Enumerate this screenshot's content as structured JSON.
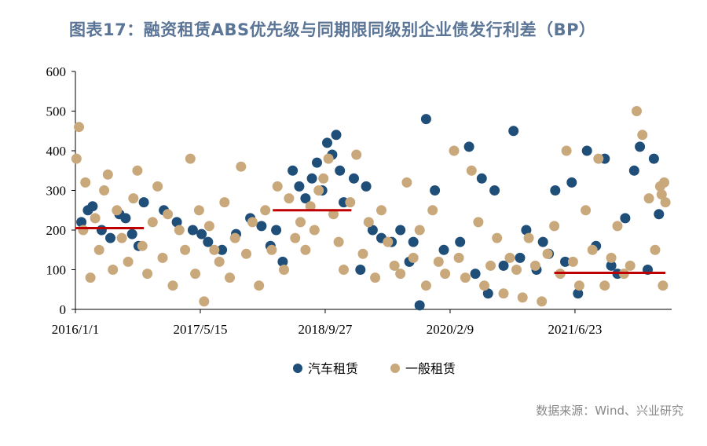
{
  "header": {
    "title": "图表17：融资租赁ABS优先级与同期限同级别企业债发行利差（BP）"
  },
  "footer": {
    "source": "数据来源：Wind、兴业研究"
  },
  "chart_data": {
    "type": "scatter",
    "title": "图表17：融资租赁ABS优先级与同期限同级别企业债发行利差（BP）",
    "ylim": [
      0,
      600
    ],
    "yticks": [
      0,
      100,
      200,
      300,
      400,
      500,
      600
    ],
    "xlim": [
      "2016-01-01",
      "2022-07-15"
    ],
    "xtick_labels": [
      "2016/1/1",
      "2017/5/15",
      "2018/9/27",
      "2020/2/9",
      "2021/6/23"
    ],
    "xtick_dates": [
      "2016-01-01",
      "2017-05-15",
      "2018-09-27",
      "2020-02-09",
      "2021-06-23"
    ],
    "legend_position": "bottom",
    "grid": false,
    "series": [
      {
        "name": "汽车租赁",
        "color": "#1f4e79",
        "x": [
          "2016-01-25",
          "2016-02-20",
          "2016-03-10",
          "2016-04-15",
          "2016-05-20",
          "2016-06-25",
          "2016-07-20",
          "2016-08-15",
          "2016-09-10",
          "2016-10-01",
          "2016-12-20",
          "2017-02-10",
          "2017-04-15",
          "2017-05-20",
          "2017-06-15",
          "2017-08-10",
          "2017-10-05",
          "2017-12-01",
          "2018-01-15",
          "2018-02-20",
          "2018-03-15",
          "2018-04-10",
          "2018-05-20",
          "2018-06-15",
          "2018-07-10",
          "2018-08-05",
          "2018-08-25",
          "2018-09-15",
          "2018-10-05",
          "2018-10-25",
          "2018-11-10",
          "2018-11-25",
          "2018-12-10",
          "2019-01-20",
          "2019-02-15",
          "2019-03-10",
          "2019-04-05",
          "2019-05-10",
          "2019-06-20",
          "2019-07-25",
          "2019-08-30",
          "2019-09-15",
          "2019-10-10",
          "2019-11-05",
          "2019-12-10",
          "2020-01-15",
          "2020-03-20",
          "2020-04-25",
          "2020-05-20",
          "2020-06-15",
          "2020-07-10",
          "2020-08-05",
          "2020-09-10",
          "2020-10-20",
          "2020-11-15",
          "2020-12-10",
          "2021-01-20",
          "2021-02-15",
          "2021-03-10",
          "2021-04-05",
          "2021-05-15",
          "2021-06-10",
          "2021-07-05",
          "2021-08-10",
          "2021-09-15",
          "2021-10-20",
          "2021-11-15",
          "2021-12-10",
          "2022-01-10",
          "2022-02-15",
          "2022-03-10",
          "2022-04-10",
          "2022-05-05",
          "2022-05-25"
        ],
        "y": [
          220,
          250,
          260,
          200,
          180,
          240,
          230,
          190,
          160,
          270,
          250,
          220,
          200,
          190,
          170,
          150,
          190,
          230,
          210,
          160,
          200,
          120,
          350,
          310,
          280,
          330,
          370,
          300,
          420,
          390,
          440,
          350,
          270,
          330,
          100,
          310,
          200,
          180,
          170,
          200,
          120,
          170,
          10,
          480,
          300,
          150,
          170,
          410,
          90,
          330,
          40,
          300,
          110,
          450,
          130,
          200,
          100,
          170,
          140,
          300,
          120,
          320,
          40,
          400,
          160,
          380,
          110,
          90,
          230,
          350,
          410,
          100,
          380,
          240
        ]
      },
      {
        "name": "一般租赁",
        "color": "#c9a97b",
        "x": [
          "2016-01-05",
          "2016-01-15",
          "2016-02-01",
          "2016-02-10",
          "2016-03-01",
          "2016-03-20",
          "2016-04-05",
          "2016-04-25",
          "2016-05-10",
          "2016-05-30",
          "2016-06-15",
          "2016-07-05",
          "2016-07-30",
          "2016-08-20",
          "2016-09-05",
          "2016-09-25",
          "2016-10-15",
          "2016-11-05",
          "2016-11-25",
          "2016-12-15",
          "2017-01-05",
          "2017-01-25",
          "2017-02-20",
          "2017-03-15",
          "2017-04-05",
          "2017-04-25",
          "2017-05-10",
          "2017-05-30",
          "2017-06-20",
          "2017-07-10",
          "2017-07-30",
          "2017-08-20",
          "2017-09-10",
          "2017-10-01",
          "2017-10-25",
          "2017-11-15",
          "2017-12-10",
          "2018-01-05",
          "2018-01-30",
          "2018-02-25",
          "2018-03-20",
          "2018-04-15",
          "2018-05-05",
          "2018-05-30",
          "2018-06-20",
          "2018-07-10",
          "2018-07-30",
          "2018-08-15",
          "2018-09-01",
          "2018-09-20",
          "2018-10-10",
          "2018-10-30",
          "2018-11-20",
          "2018-12-10",
          "2019-01-05",
          "2019-01-30",
          "2019-02-25",
          "2019-03-20",
          "2019-04-15",
          "2019-05-10",
          "2019-06-05",
          "2019-07-01",
          "2019-07-25",
          "2019-08-20",
          "2019-09-15",
          "2019-10-10",
          "2019-11-05",
          "2019-12-01",
          "2019-12-25",
          "2020-01-20",
          "2020-02-25",
          "2020-03-15",
          "2020-04-10",
          "2020-05-05",
          "2020-06-01",
          "2020-06-25",
          "2020-07-20",
          "2020-08-15",
          "2020-09-10",
          "2020-10-05",
          "2020-11-01",
          "2020-11-25",
          "2020-12-20",
          "2021-01-15",
          "2021-02-10",
          "2021-03-05",
          "2021-04-01",
          "2021-04-25",
          "2021-05-20",
          "2021-06-15",
          "2021-07-10",
          "2021-08-05",
          "2021-09-01",
          "2021-09-25",
          "2021-10-20",
          "2021-11-15",
          "2021-12-10",
          "2022-01-05",
          "2022-01-30",
          "2022-02-25",
          "2022-03-20",
          "2022-04-15",
          "2022-05-10",
          "2022-05-30",
          "2022-06-05",
          "2022-06-10",
          "2022-06-15",
          "2022-06-20"
        ],
        "y": [
          380,
          460,
          200,
          320,
          80,
          230,
          150,
          300,
          340,
          100,
          250,
          180,
          120,
          280,
          350,
          160,
          90,
          220,
          310,
          130,
          240,
          60,
          200,
          150,
          380,
          90,
          250,
          20,
          210,
          150,
          120,
          270,
          80,
          180,
          360,
          140,
          220,
          60,
          250,
          150,
          310,
          100,
          280,
          180,
          220,
          150,
          260,
          200,
          300,
          330,
          380,
          240,
          170,
          100,
          270,
          390,
          140,
          220,
          80,
          250,
          170,
          110,
          90,
          320,
          130,
          200,
          60,
          250,
          120,
          90,
          400,
          130,
          80,
          350,
          220,
          60,
          110,
          180,
          40,
          130,
          100,
          30,
          180,
          110,
          20,
          140,
          210,
          90,
          400,
          120,
          60,
          250,
          150,
          380,
          60,
          130,
          210,
          90,
          110,
          500,
          440,
          280,
          150,
          310,
          290,
          60,
          320,
          270
        ]
      }
    ],
    "reference_lines": [
      {
        "x_start": "2016-01-01",
        "x_end": "2016-10-01",
        "y": 205
      },
      {
        "x_start": "2018-03-01",
        "x_end": "2019-01-10",
        "y": 250
      },
      {
        "x_start": "2021-04-01",
        "x_end": "2022-06-20",
        "y": 92
      }
    ]
  }
}
